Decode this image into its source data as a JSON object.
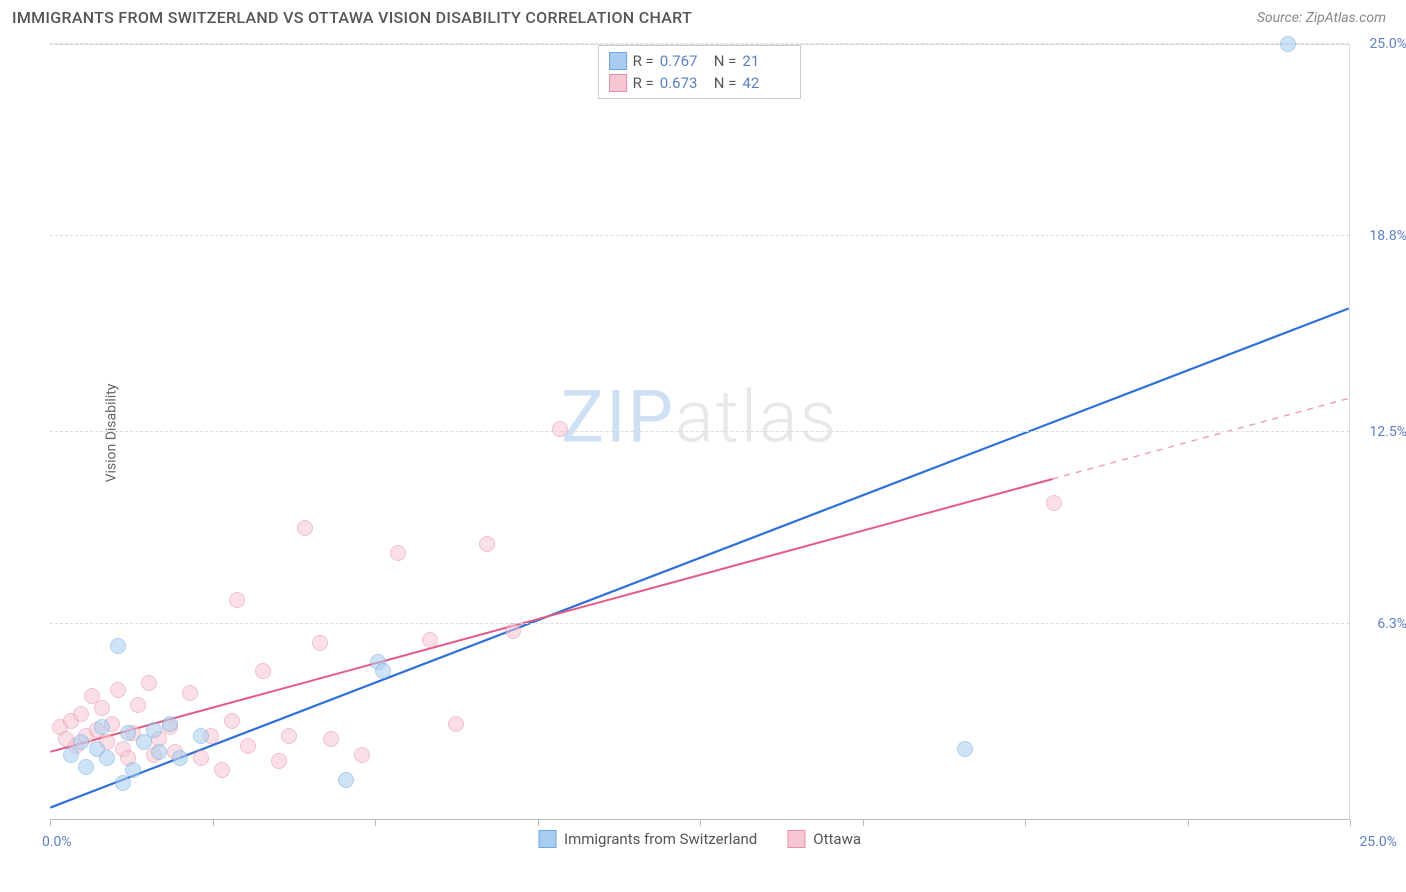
{
  "title": "IMMIGRANTS FROM SWITZERLAND VS OTTAWA VISION DISABILITY CORRELATION CHART",
  "source_label": "Source:",
  "source_value": "ZipAtlas.com",
  "ylabel": "Vision Disability",
  "watermark": {
    "part1": "ZIP",
    "part2": "atlas"
  },
  "chart": {
    "type": "scatter",
    "xlim": [
      0,
      25
    ],
    "ylim": [
      0,
      25
    ],
    "x_ticks": [
      0,
      3.125,
      6.25,
      9.375,
      12.5,
      15.625,
      18.75,
      21.875,
      25
    ],
    "y_gridlines": [
      6.3,
      12.5,
      18.8,
      25.0
    ],
    "y_tick_labels": [
      "6.3%",
      "12.5%",
      "18.8%",
      "25.0%"
    ],
    "x_min_label": "0.0%",
    "x_max_label": "25.0%",
    "background_color": "#ffffff",
    "grid_color": "#dddddd",
    "tick_label_color": "#5b7fc7",
    "point_radius": 8,
    "point_opacity": 0.55,
    "series": [
      {
        "name": "Immigrants from Switzerland",
        "color_fill": "#a9cdf0",
        "color_stroke": "#6ea8e0",
        "R": "0.767",
        "N": "21",
        "trend": {
          "x1": 0,
          "y1": 0.4,
          "x2": 25,
          "y2": 16.5,
          "solid_until_x": 25,
          "color": "#2e6fd9",
          "width": 2.2
        },
        "points": [
          [
            0.4,
            2.1
          ],
          [
            0.6,
            2.5
          ],
          [
            0.7,
            1.7
          ],
          [
            0.9,
            2.3
          ],
          [
            1.0,
            3.0
          ],
          [
            1.1,
            2.0
          ],
          [
            1.3,
            5.6
          ],
          [
            1.4,
            1.2
          ],
          [
            1.5,
            2.8
          ],
          [
            1.8,
            2.5
          ],
          [
            2.0,
            2.9
          ],
          [
            2.1,
            2.2
          ],
          [
            2.3,
            3.1
          ],
          [
            2.5,
            2.0
          ],
          [
            2.9,
            2.7
          ],
          [
            5.7,
            1.3
          ],
          [
            6.3,
            5.1
          ],
          [
            6.4,
            4.8
          ],
          [
            17.6,
            2.3
          ],
          [
            23.8,
            25.0
          ],
          [
            1.6,
            1.6
          ]
        ]
      },
      {
        "name": "Ottawa",
        "color_fill": "#f6c7d2",
        "color_stroke": "#e88fa7",
        "R": "0.673",
        "N": "42",
        "trend": {
          "x1": 0,
          "y1": 2.2,
          "x2": 25,
          "y2": 13.6,
          "solid_until_x": 19.3,
          "color": "#e65b82",
          "width": 2.0
        },
        "points": [
          [
            0.2,
            3.0
          ],
          [
            0.3,
            2.6
          ],
          [
            0.4,
            3.2
          ],
          [
            0.5,
            2.4
          ],
          [
            0.6,
            3.4
          ],
          [
            0.7,
            2.7
          ],
          [
            0.8,
            4.0
          ],
          [
            0.9,
            2.9
          ],
          [
            1.0,
            3.6
          ],
          [
            1.1,
            2.5
          ],
          [
            1.2,
            3.1
          ],
          [
            1.3,
            4.2
          ],
          [
            1.4,
            2.3
          ],
          [
            1.6,
            2.8
          ],
          [
            1.7,
            3.7
          ],
          [
            1.9,
            4.4
          ],
          [
            2.1,
            2.6
          ],
          [
            2.3,
            3.0
          ],
          [
            2.4,
            2.2
          ],
          [
            2.7,
            4.1
          ],
          [
            2.9,
            2.0
          ],
          [
            3.1,
            2.7
          ],
          [
            3.3,
            1.6
          ],
          [
            3.5,
            3.2
          ],
          [
            3.6,
            7.1
          ],
          [
            3.8,
            2.4
          ],
          [
            4.4,
            1.9
          ],
          [
            4.6,
            2.7
          ],
          [
            4.9,
            9.4
          ],
          [
            5.2,
            5.7
          ],
          [
            5.4,
            2.6
          ],
          [
            6.0,
            2.1
          ],
          [
            6.7,
            8.6
          ],
          [
            7.3,
            5.8
          ],
          [
            7.8,
            3.1
          ],
          [
            8.4,
            8.9
          ],
          [
            9.8,
            12.6
          ],
          [
            8.9,
            6.1
          ],
          [
            4.1,
            4.8
          ],
          [
            2.0,
            2.1
          ],
          [
            1.5,
            2.0
          ],
          [
            19.3,
            10.2
          ]
        ]
      }
    ]
  },
  "legend_top": {
    "r_label": "R =",
    "n_label": "N ="
  },
  "colors": {
    "title": "#555555",
    "source": "#888888",
    "axis_label": "#666666"
  }
}
